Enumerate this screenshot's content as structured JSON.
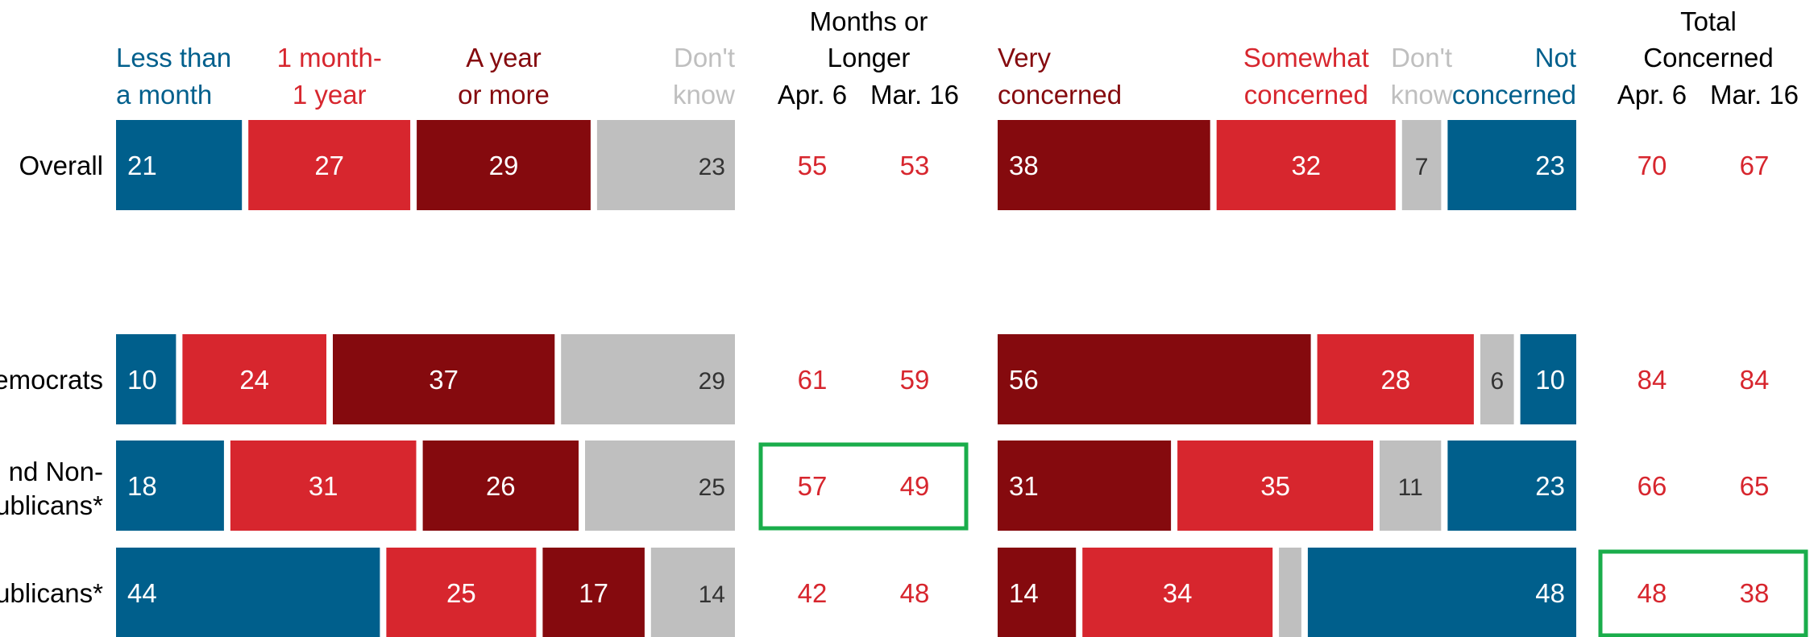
{
  "colors": {
    "blue": "#005f8c",
    "red": "#d7262e",
    "dark_red": "#850a0e",
    "gray": "#bfbfbf",
    "white_text": "#ffffff",
    "dark_text": "#333333",
    "label_text": "#000000",
    "highlight_box": "#1aad4b"
  },
  "chart_data": [
    {
      "type": "bar",
      "stacked": "horizontal-100",
      "categories": [
        "Overall",
        "Democrats",
        "Independents and Non-Republicans*",
        "Republicans*"
      ],
      "category_labels_visible": [
        "Overall",
        "emocrats",
        "nd Non-\nublicans*",
        "ublicans*"
      ],
      "series": [
        {
          "name": "Less than a month",
          "color": "#005f8c",
          "values": [
            21,
            10,
            18,
            44
          ]
        },
        {
          "name": "1 month- 1 year",
          "color": "#d7262e",
          "values": [
            27,
            24,
            31,
            25
          ]
        },
        {
          "name": "A year or more",
          "color": "#850a0e",
          "values": [
            29,
            37,
            26,
            17
          ]
        },
        {
          "name": "Don't know",
          "color": "#bfbfbf",
          "values": [
            23,
            29,
            25,
            14
          ]
        }
      ],
      "legend": [
        {
          "lines": [
            "Less than",
            "a month"
          ],
          "color": "#005f8c",
          "align": "start"
        },
        {
          "lines": [
            "1 month-",
            "1 year"
          ],
          "color": "#d7262e",
          "align": "middle"
        },
        {
          "lines": [
            "A year",
            "or more"
          ],
          "color": "#850a0e",
          "align": "middle"
        },
        {
          "lines": [
            "Don't",
            "know"
          ],
          "color": "#bfbfbf",
          "align": "end"
        }
      ],
      "legend_placement": "top"
    },
    {
      "type": "table",
      "title_lines": [
        "Months or",
        "Longer"
      ],
      "columns": [
        "Apr. 6",
        "Mar. 16"
      ],
      "rows": [
        [
          55,
          53
        ],
        [
          61,
          59
        ],
        [
          57,
          49
        ],
        [
          42,
          48
        ]
      ],
      "highlighted_row": 2
    },
    {
      "type": "bar",
      "stacked": "horizontal-100",
      "categories": [
        "Overall",
        "Democrats",
        "Independents and Non-Republicans*",
        "Republicans*"
      ],
      "series": [
        {
          "name": "Very concerned",
          "color": "#850a0e",
          "values": [
            38,
            56,
            31,
            14
          ]
        },
        {
          "name": "Somewhat concerned",
          "color": "#d7262e",
          "values": [
            32,
            28,
            35,
            34
          ]
        },
        {
          "name": "Don't know",
          "color": "#bfbfbf",
          "values": [
            7,
            6,
            11,
            4
          ]
        },
        {
          "name": "Not concerned",
          "color": "#005f8c",
          "values": [
            23,
            10,
            23,
            48
          ]
        }
      ],
      "value_labels": [
        [
          "38",
          "32",
          "7",
          "23"
        ],
        [
          "56",
          "28",
          "6",
          "10"
        ],
        [
          "31",
          "35",
          "11",
          "23"
        ],
        [
          "14",
          "34",
          "",
          "48"
        ]
      ],
      "legend": [
        {
          "lines": [
            "Very",
            "concerned"
          ],
          "color": "#850a0e",
          "align": "start"
        },
        {
          "lines": [
            "Somewhat",
            "concerned"
          ],
          "color": "#d7262e",
          "align": "middle"
        },
        {
          "lines": [
            "Don't",
            "know"
          ],
          "color": "#bfbfbf",
          "align": "middle"
        },
        {
          "lines": [
            "Not",
            "concerned"
          ],
          "color": "#005f8c",
          "align": "end"
        }
      ],
      "legend_placement": "top"
    },
    {
      "type": "table",
      "title_lines": [
        "Total",
        "Concerned"
      ],
      "columns": [
        "Apr. 6",
        "Mar. 16"
      ],
      "rows": [
        [
          70,
          67
        ],
        [
          84,
          84
        ],
        [
          66,
          65
        ],
        [
          48,
          38
        ]
      ],
      "highlighted_row": 3
    }
  ]
}
